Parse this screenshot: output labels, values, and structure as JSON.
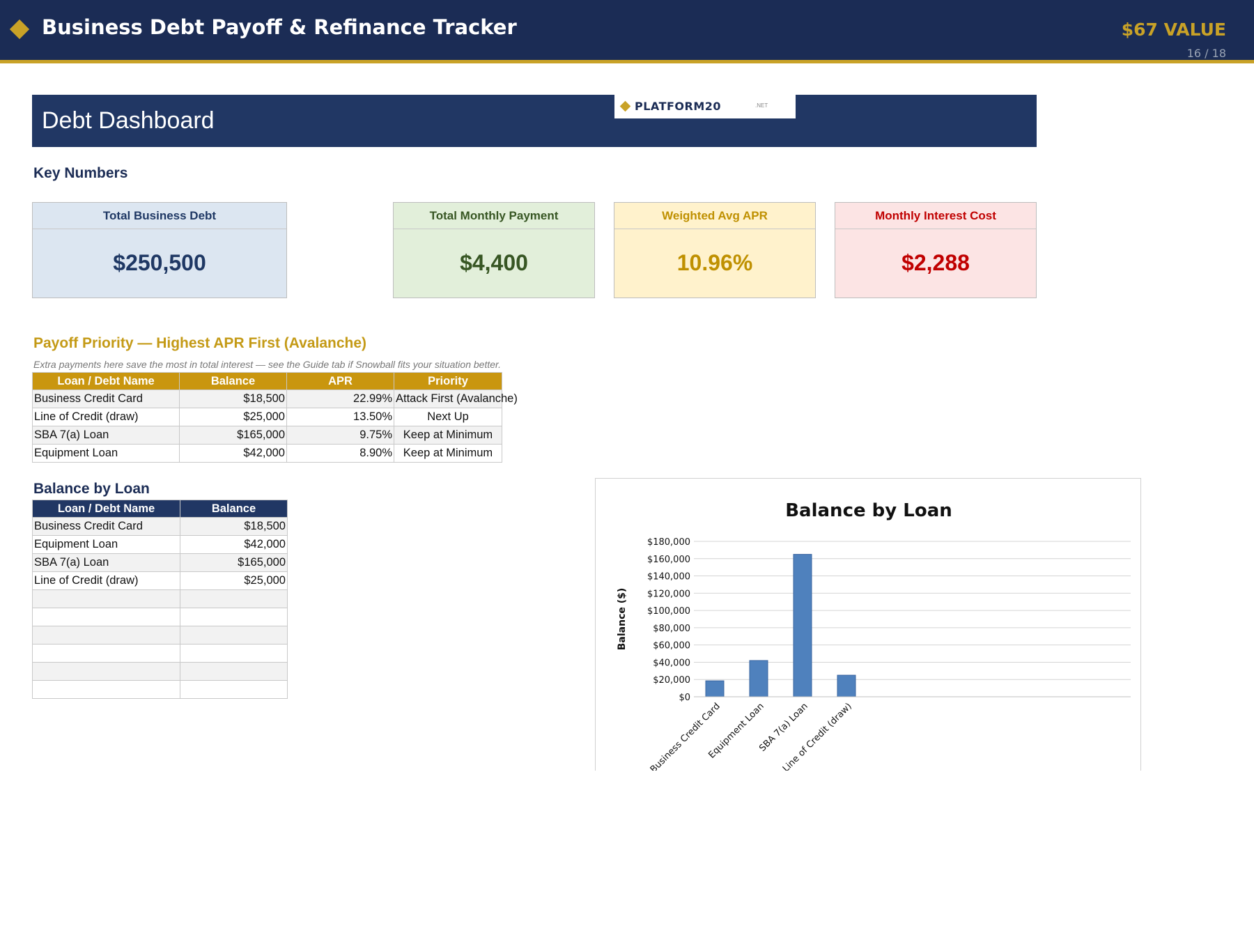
{
  "header": {
    "title": "Business Debt Payoff & Refinance Tracker",
    "value_badge": "$67 VALUE",
    "page_counter": "16 / 18"
  },
  "dashboard": {
    "title": "Debt Dashboard",
    "logo": {
      "name": "PLATFORM20",
      "suffix": ".NET"
    }
  },
  "key_numbers": {
    "title": "Key Numbers",
    "cards": [
      {
        "label": "Total Business Debt",
        "value": "$250,500"
      },
      {
        "label": "Total Monthly Payment",
        "value": "$4,400"
      },
      {
        "label": "Weighted Avg APR",
        "value": "10.96%"
      },
      {
        "label": "Monthly Interest Cost",
        "value": "$2,288"
      }
    ]
  },
  "payoff": {
    "title": "Payoff Priority — Highest APR First (Avalanche)",
    "note": "Extra payments here save the most in total interest — see the Guide tab if Snowball fits your situation better.",
    "columns": [
      "Loan / Debt Name",
      "Balance",
      "APR",
      "Priority"
    ],
    "rows": [
      {
        "name": "Business Credit Card",
        "balance": "$18,500",
        "apr": "22.99%",
        "priority": "Attack First (Avalanche)"
      },
      {
        "name": "Line of Credit (draw)",
        "balance": "$25,000",
        "apr": "13.50%",
        "priority": "Next Up"
      },
      {
        "name": "SBA 7(a) Loan",
        "balance": "$165,000",
        "apr": "9.75%",
        "priority": "Keep at Minimum"
      },
      {
        "name": "Equipment Loan",
        "balance": "$42,000",
        "apr": "8.90%",
        "priority": "Keep at Minimum"
      }
    ]
  },
  "balance_table": {
    "title": "Balance by Loan",
    "columns": [
      "Loan / Debt Name",
      "Balance"
    ],
    "rows": [
      {
        "name": "Business Credit Card",
        "balance": "$18,500"
      },
      {
        "name": "Equipment Loan",
        "balance": "$42,000"
      },
      {
        "name": "SBA 7(a) Loan",
        "balance": "$165,000"
      },
      {
        "name": "Line of Credit (draw)",
        "balance": "$25,000"
      },
      {
        "name": "",
        "balance": ""
      },
      {
        "name": "",
        "balance": ""
      },
      {
        "name": "",
        "balance": ""
      },
      {
        "name": "",
        "balance": ""
      },
      {
        "name": "",
        "balance": ""
      },
      {
        "name": "",
        "balance": ""
      }
    ]
  },
  "chart_data": {
    "type": "bar",
    "title": "Balance by Loan",
    "xlabel": "",
    "ylabel": "Balance ($)",
    "categories": [
      "Business Credit Card",
      "Equipment Loan",
      "SBA 7(a) Loan",
      "Line of Credit (draw)"
    ],
    "values": [
      18500,
      42000,
      165000,
      25000
    ],
    "ylim": [
      0,
      180000
    ],
    "yticks": [
      0,
      20000,
      40000,
      60000,
      80000,
      100000,
      120000,
      140000,
      160000,
      180000
    ],
    "ytick_labels": [
      "$0",
      "$20,000",
      "$40,000",
      "$60,000",
      "$80,000",
      "$100,000",
      "$120,000",
      "$140,000",
      "$160,000",
      "$180,000"
    ],
    "grid": true,
    "legend": "none",
    "bar_color": "#4f81bd"
  },
  "colors": {
    "navy": "#1b2c55",
    "gold": "#c9a227",
    "card_blue_bg": "#dce6f1",
    "card_blue_text": "#1f3864",
    "card_green_bg": "#e2efda",
    "card_green_text": "#375623",
    "card_yellow_bg": "#fff2cc",
    "card_yellow_text": "#bf9000",
    "card_red_bg": "#fce4e4",
    "card_red_text": "#c00000"
  }
}
